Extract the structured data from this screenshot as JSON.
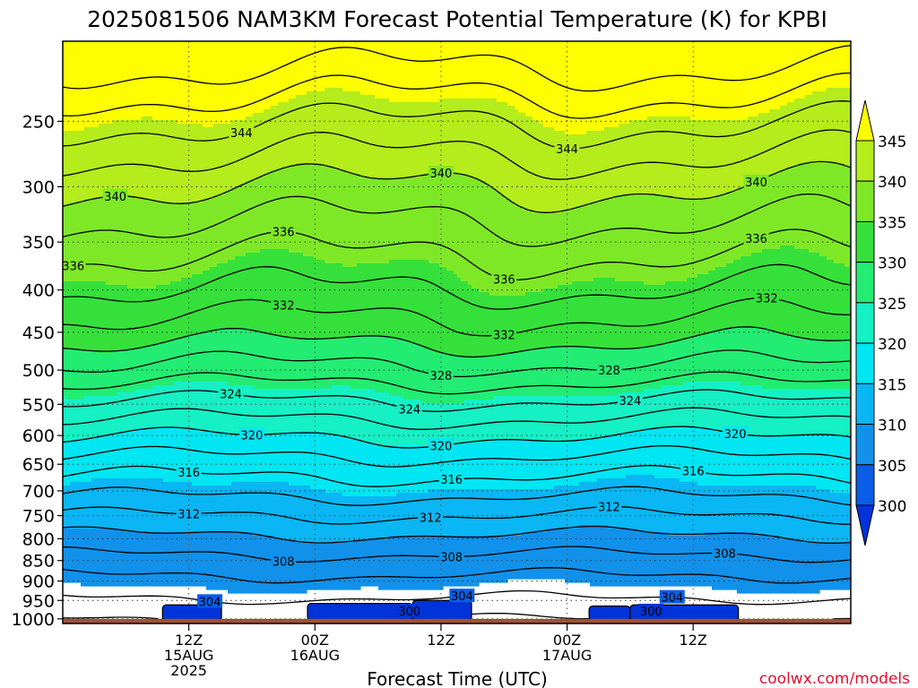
{
  "chart_data": {
    "type": "heatmap",
    "title": "2025081506 NAM3KM Forecast Potential Temperature (K) for KPBI",
    "xlabel": "Forecast Time (UTC)",
    "ylabel": "",
    "credit": "coolwx.com/models",
    "x_range_hours": [
      -6,
      69
    ],
    "x_ticks": [
      {
        "hour": 6,
        "lines": [
          "12Z",
          "15AUG",
          "2025"
        ]
      },
      {
        "hour": 18,
        "lines": [
          "00Z",
          "16AUG"
        ]
      },
      {
        "hour": 30,
        "lines": [
          "12Z"
        ]
      },
      {
        "hour": 42,
        "lines": [
          "00Z",
          "17AUG"
        ]
      },
      {
        "hour": 54,
        "lines": [
          "12Z"
        ]
      }
    ],
    "y_ticks": [
      250,
      300,
      350,
      400,
      450,
      500,
      550,
      600,
      650,
      700,
      750,
      800,
      850,
      900,
      950,
      1000
    ],
    "y_range_hpa": [
      200,
      1013
    ],
    "y_scale": "log",
    "colorbar": {
      "levels": [
        300,
        305,
        310,
        315,
        320,
        325,
        330,
        335,
        340,
        345
      ],
      "colors": [
        "#0033d9",
        "#0a5de6",
        "#1191ea",
        "#0ab6f3",
        "#00e6f2",
        "#15f0c5",
        "#22ec72",
        "#35e03a",
        "#7ee827",
        "#b4ec1c",
        "#fefe00"
      ],
      "extend": "both"
    },
    "profile": [
      {
        "p": 1000,
        "theta": 302.0
      },
      {
        "p": 950,
        "theta": 303.8
      },
      {
        "p": 900,
        "theta": 305.5
      },
      {
        "p": 850,
        "theta": 307.4
      },
      {
        "p": 800,
        "theta": 309.6
      },
      {
        "p": 750,
        "theta": 312.0
      },
      {
        "p": 700,
        "theta": 314.6
      },
      {
        "p": 650,
        "theta": 317.2
      },
      {
        "p": 600,
        "theta": 320.2
      },
      {
        "p": 550,
        "theta": 323.6
      },
      {
        "p": 500,
        "theta": 327.5
      },
      {
        "p": 450,
        "theta": 331.0
      },
      {
        "p": 400,
        "theta": 334.0
      },
      {
        "p": 350,
        "theta": 336.8
      },
      {
        "p": 300,
        "theta": 340.0
      },
      {
        "p": 250,
        "theta": 344.2
      },
      {
        "p": 200,
        "theta": 350.0
      }
    ],
    "contour_levels": [
      302,
      304,
      306,
      308,
      310,
      312,
      314,
      316,
      318,
      320,
      322,
      324,
      326,
      328,
      330,
      332,
      334,
      336,
      338,
      340,
      342,
      344,
      346,
      348
    ],
    "contour_labels": [
      {
        "level": 344,
        "hours": [
          11,
          42
        ]
      },
      {
        "level": 340,
        "hours": [
          -1,
          30,
          60
        ]
      },
      {
        "level": 336,
        "hours": [
          -5,
          15,
          36,
          60
        ]
      },
      {
        "level": 332,
        "hours": [
          15,
          36,
          61
        ]
      },
      {
        "level": 328,
        "hours": [
          30,
          46
        ]
      },
      {
        "level": 324,
        "hours": [
          10,
          27,
          48
        ]
      },
      {
        "level": 320,
        "hours": [
          12,
          30,
          58
        ]
      },
      {
        "level": 316,
        "hours": [
          6,
          31,
          54
        ]
      },
      {
        "level": 312,
        "hours": [
          6,
          29,
          46
        ]
      },
      {
        "level": 308,
        "hours": [
          15,
          31,
          57
        ]
      },
      {
        "level": 304,
        "hours": [
          8,
          32,
          52
        ]
      },
      {
        "level": 300,
        "hours": [
          27,
          50
        ]
      }
    ],
    "cold_pools": [
      {
        "h0": 3.5,
        "h1": 9.1,
        "p_top": 962
      },
      {
        "h0": 17.3,
        "h1": 27.3,
        "p_top": 958
      },
      {
        "h0": 27.3,
        "h1": 32.9,
        "p_top": 950
      },
      {
        "h0": 44.1,
        "h1": 48.0,
        "p_top": 965
      },
      {
        "h0": 48.0,
        "h1": 58.3,
        "p_top": 962
      }
    ],
    "ground_p": 1000
  }
}
